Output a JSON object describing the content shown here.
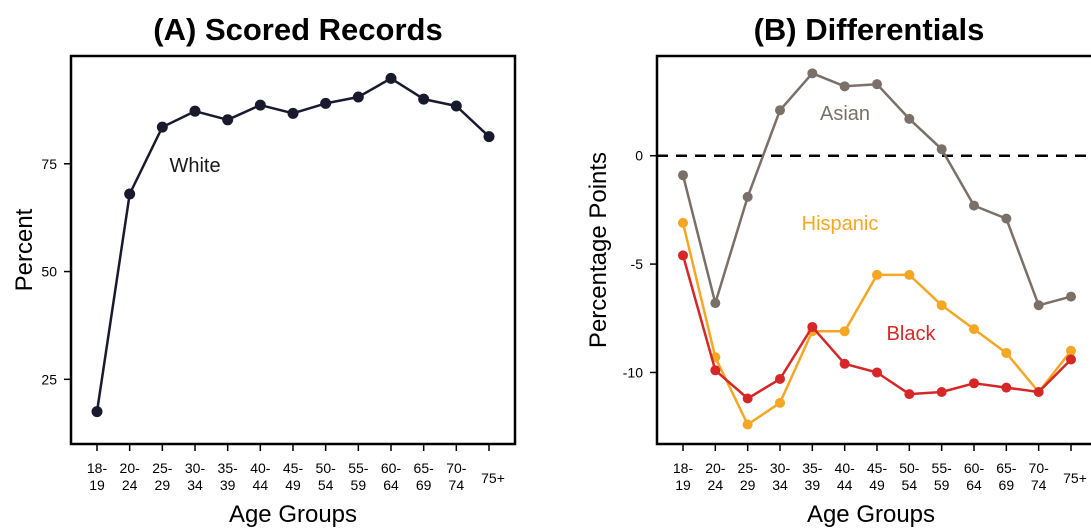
{
  "chart_data": [
    {
      "type": "line",
      "title": "(A) Scored Records",
      "xlabel": "Age Groups",
      "ylabel": "Percent",
      "categories": [
        [
          "18-",
          "19"
        ],
        [
          "20-",
          "24"
        ],
        [
          "25-",
          "29"
        ],
        [
          "30-",
          "34"
        ],
        [
          "35-",
          "39"
        ],
        [
          "40-",
          "44"
        ],
        [
          "45-",
          "49"
        ],
        [
          "50-",
          "54"
        ],
        [
          "55-",
          "59"
        ],
        [
          "60-",
          "64"
        ],
        [
          "65-",
          "69"
        ],
        [
          "70-",
          "74"
        ],
        [
          "75+",
          ""
        ]
      ],
      "yticks": [
        25,
        50,
        75
      ],
      "ylim": [
        10,
        100
      ],
      "grid": false,
      "series": [
        {
          "name": "White",
          "color": "#1a1a2e",
          "values": [
            17.5,
            68.0,
            83.5,
            87.2,
            85.2,
            88.6,
            86.7,
            89.0,
            90.5,
            94.8,
            90.0,
            88.4,
            81.3
          ]
        }
      ]
    },
    {
      "type": "line",
      "title": "(B) Differentials",
      "xlabel": "Age Groups",
      "ylabel": "Percentage Points",
      "categories": [
        [
          "18-",
          "19"
        ],
        [
          "20-",
          "24"
        ],
        [
          "25-",
          "29"
        ],
        [
          "30-",
          "34"
        ],
        [
          "35-",
          "39"
        ],
        [
          "40-",
          "44"
        ],
        [
          "45-",
          "49"
        ],
        [
          "50-",
          "54"
        ],
        [
          "55-",
          "59"
        ],
        [
          "60-",
          "64"
        ],
        [
          "65-",
          "69"
        ],
        [
          "70-",
          "74"
        ],
        [
          "75+",
          ""
        ]
      ],
      "yticks": [
        0,
        -5,
        -10
      ],
      "ylim": [
        -13.3,
        4.6
      ],
      "reference_line": 0,
      "grid": false,
      "series": [
        {
          "name": "Asian",
          "color": "#7a7068",
          "values": [
            -0.9,
            -6.8,
            -1.9,
            2.1,
            3.8,
            3.2,
            3.3,
            1.7,
            0.3,
            -2.3,
            -2.9,
            -6.9,
            -6.5
          ]
        },
        {
          "name": "Hispanic",
          "color": "#f5a623",
          "values": [
            -3.1,
            -9.3,
            -12.4,
            -11.4,
            -8.1,
            -8.1,
            -5.5,
            -5.5,
            -6.9,
            -8.0,
            -9.1,
            -10.9,
            -9.0
          ]
        },
        {
          "name": "Black",
          "color": "#d62728",
          "values": [
            -4.6,
            -9.9,
            -11.2,
            -10.3,
            -7.9,
            -9.6,
            -10.0,
            -11.0,
            -10.9,
            -10.5,
            -10.7,
            -10.9,
            -9.4
          ]
        }
      ]
    }
  ]
}
